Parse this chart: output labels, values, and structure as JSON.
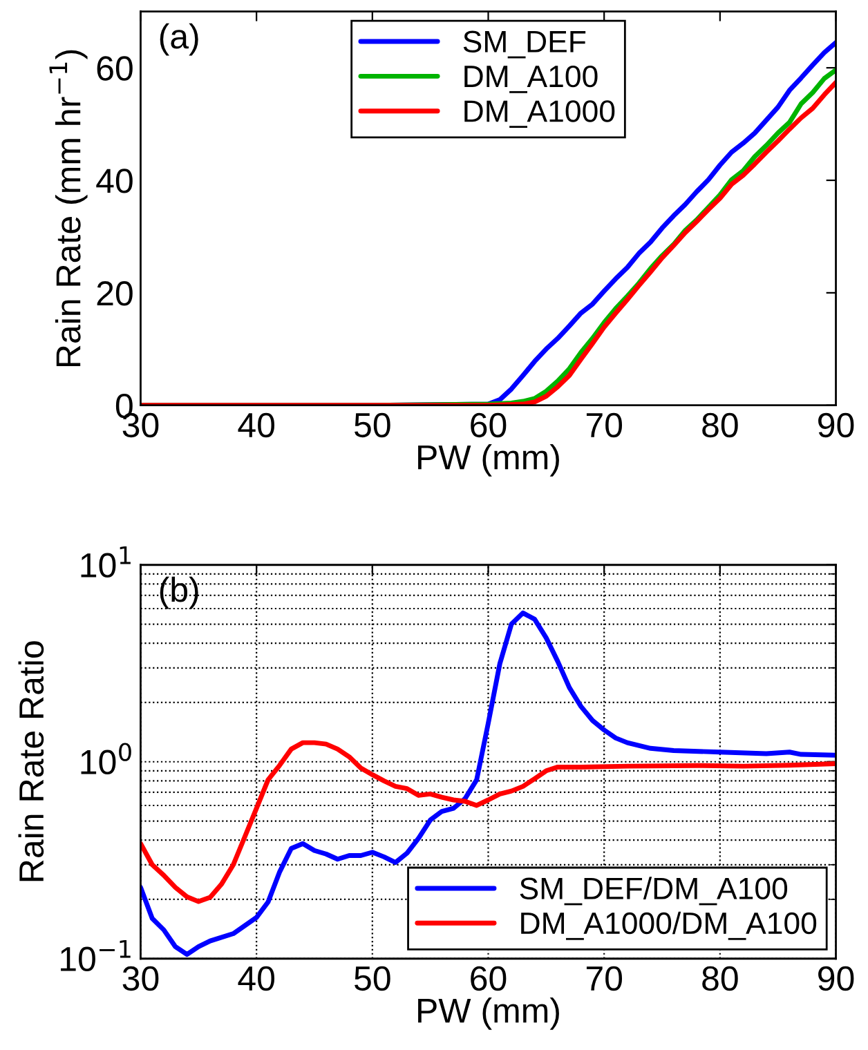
{
  "chart_data": [
    {
      "type": "line",
      "xlabel": "PW (mm)",
      "ylabel": "Rain Rate (mm hr$^{−1}$)",
      "annotations": [
        "(a)"
      ],
      "xlim": [
        30,
        90
      ],
      "xticks": [
        30,
        40,
        50,
        60,
        70,
        80,
        90
      ],
      "ylim": [
        0,
        70
      ],
      "yticks": [
        0,
        20,
        40,
        60
      ],
      "grid": false,
      "legend": "top",
      "marker": "none",
      "line_style": "solid",
      "series": [
        {
          "name": "SM_DEF",
          "color": "#0000ff",
          "x": [
            30,
            50,
            60,
            61,
            62,
            63,
            64,
            65,
            66,
            67,
            68,
            69,
            70,
            71,
            72,
            73,
            74,
            75,
            76,
            77,
            78,
            79,
            80,
            81,
            82,
            83,
            84,
            85,
            86,
            87,
            88,
            89,
            90
          ],
          "values": [
            0,
            0,
            0.2,
            1,
            2.9,
            5.3,
            7.8,
            10,
            11.9,
            14.1,
            16.4,
            18,
            20.3,
            22.5,
            24.5,
            27,
            29,
            31.5,
            33.7,
            35.7,
            38,
            40.1,
            42.7,
            45,
            46.6,
            48.4,
            50.7,
            53,
            56,
            58.2,
            60.5,
            62.7,
            64.5
          ]
        },
        {
          "name": "DM_A100",
          "color": "#00b400",
          "x": [
            30,
            50,
            60,
            62,
            63,
            64,
            65,
            66,
            67,
            68,
            69,
            70,
            71,
            72,
            73,
            74,
            75,
            76,
            77,
            78,
            79,
            80,
            81,
            82,
            83,
            84,
            85,
            86,
            87,
            88,
            89,
            90
          ],
          "values": [
            0,
            0,
            0.2,
            0.4,
            0.7,
            1.2,
            2.5,
            4.3,
            6.5,
            9.4,
            11.9,
            14.7,
            17.2,
            19.4,
            21.7,
            24.3,
            26.6,
            28.6,
            31.1,
            33,
            35.2,
            37.4,
            40.1,
            41.7,
            44.2,
            46.2,
            48.4,
            50.3,
            53.6,
            55.6,
            58.1,
            59.6
          ]
        },
        {
          "name": "DM_A1000",
          "color": "#ff0000",
          "x": [
            30,
            50,
            60,
            63,
            64,
            65,
            66,
            67,
            68,
            69,
            70,
            71,
            72,
            73,
            74,
            75,
            76,
            77,
            78,
            79,
            80,
            81,
            82,
            83,
            84,
            85,
            86,
            87,
            88,
            89,
            90
          ],
          "values": [
            0,
            0,
            0,
            0.2,
            0.6,
            1.6,
            3.3,
            5.3,
            8.2,
            11,
            13.9,
            16.4,
            18.8,
            21.3,
            23.7,
            26.2,
            28.4,
            30.7,
            32.7,
            34.8,
            36.8,
            39.3,
            40.9,
            42.9,
            45,
            47,
            49.1,
            51.1,
            52.8,
            55.2,
            57.4
          ]
        }
      ]
    },
    {
      "type": "line",
      "xlabel": "PW (mm)",
      "ylabel": "Rain Rate Ratio",
      "annotations": [
        "(b)"
      ],
      "log": "y",
      "xlim": [
        30,
        90
      ],
      "xticks": [
        30,
        40,
        50,
        60,
        70,
        80,
        90
      ],
      "ylim": [
        0.1,
        10
      ],
      "yticks": [
        {
          "value": 0.1,
          "label": "10$^{−1}$"
        },
        {
          "value": 1,
          "label": "10$^{0}$"
        },
        {
          "value": 10,
          "label": "10$^{1}$"
        }
      ],
      "grid": true,
      "legend": "bottom right",
      "marker": "none",
      "line_style": "solid",
      "series": [
        {
          "name": "SM_DEF/DM_A100",
          "color": "#0000ff",
          "x": [
            30,
            31,
            32,
            33,
            34,
            35,
            36,
            38,
            40,
            41,
            42,
            43,
            44,
            45,
            46,
            47,
            48,
            49,
            50,
            51,
            52,
            53,
            54,
            55,
            56,
            57,
            58,
            59,
            60,
            61,
            62,
            63,
            64,
            65,
            66,
            67,
            68,
            69,
            70,
            71,
            72,
            74,
            76,
            80,
            84,
            86,
            87,
            90
          ],
          "values": [
            0.23,
            0.16,
            0.14,
            0.115,
            0.105,
            0.115,
            0.123,
            0.134,
            0.162,
            0.194,
            0.276,
            0.363,
            0.384,
            0.354,
            0.34,
            0.32,
            0.334,
            0.334,
            0.347,
            0.329,
            0.308,
            0.344,
            0.41,
            0.506,
            0.56,
            0.58,
            0.65,
            0.81,
            1.57,
            3.15,
            5.0,
            5.7,
            5.3,
            4.26,
            3.23,
            2.38,
            1.91,
            1.62,
            1.45,
            1.32,
            1.25,
            1.17,
            1.14,
            1.12,
            1.1,
            1.12,
            1.09,
            1.08
          ]
        },
        {
          "name": "DM_A1000/DM_A100",
          "color": "#ff0000",
          "x": [
            30,
            31,
            32,
            33,
            34,
            35,
            36,
            37,
            38,
            39,
            40,
            41,
            42,
            43,
            44,
            45,
            46,
            47,
            48,
            49,
            50,
            51,
            52,
            53,
            54,
            55,
            56,
            57,
            58,
            59,
            60,
            61,
            62,
            63,
            64,
            65,
            66,
            68,
            72,
            78,
            82,
            86,
            90
          ],
          "values": [
            0.384,
            0.3,
            0.265,
            0.23,
            0.206,
            0.195,
            0.205,
            0.24,
            0.3,
            0.417,
            0.58,
            0.81,
            0.96,
            1.16,
            1.25,
            1.25,
            1.23,
            1.16,
            1.06,
            0.93,
            0.86,
            0.8,
            0.75,
            0.73,
            0.675,
            0.686,
            0.66,
            0.64,
            0.63,
            0.6,
            0.64,
            0.686,
            0.71,
            0.75,
            0.82,
            0.9,
            0.94,
            0.94,
            0.95,
            0.957,
            0.95,
            0.96,
            0.978
          ]
        }
      ]
    }
  ]
}
